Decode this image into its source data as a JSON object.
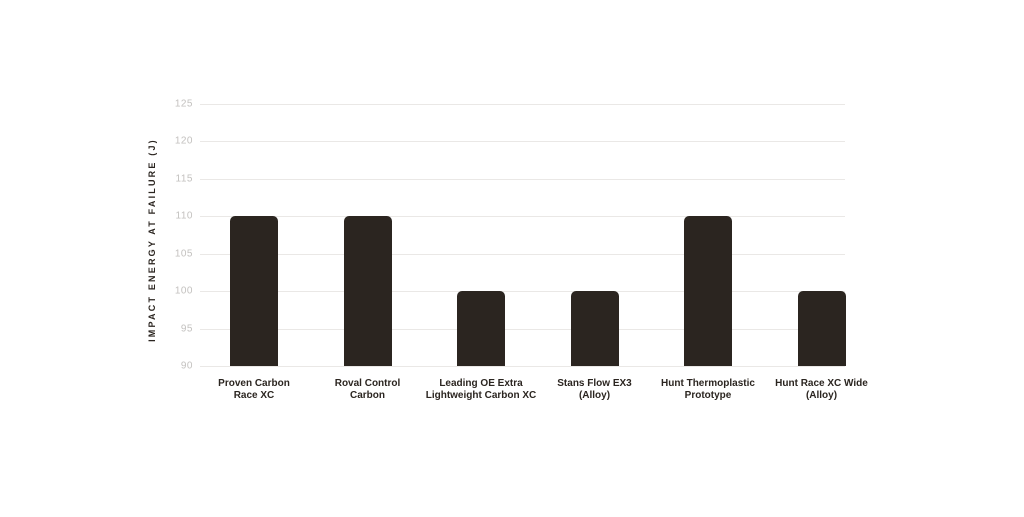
{
  "chart_data": {
    "type": "bar",
    "title": "",
    "xlabel": "",
    "ylabel": "IMPACT ENERGY AT FAILURE (J)",
    "categories": [
      "Proven Carbon\nRace XC",
      "Roval Control\nCarbon",
      "Leading OE Extra\nLightweight Carbon XC",
      "Stans Flow EX3\n(Alloy)",
      "Hunt Thermoplastic\nPrototype",
      "Hunt Race XC Wide\n(Alloy)"
    ],
    "values": [
      110,
      110,
      100,
      100,
      110,
      100
    ],
    "yticks": [
      90,
      95,
      100,
      105,
      110,
      115,
      120,
      125
    ],
    "ylim": [
      90,
      125
    ],
    "grid": "horizontal",
    "legend": "none",
    "colors": {
      "bar": "#2b2520",
      "gridline": "#eae8e6",
      "tick_label": "#c3c1bf",
      "category_label": "#2b2520",
      "axis_title": "#2b2520",
      "background": "#ffffff"
    }
  }
}
